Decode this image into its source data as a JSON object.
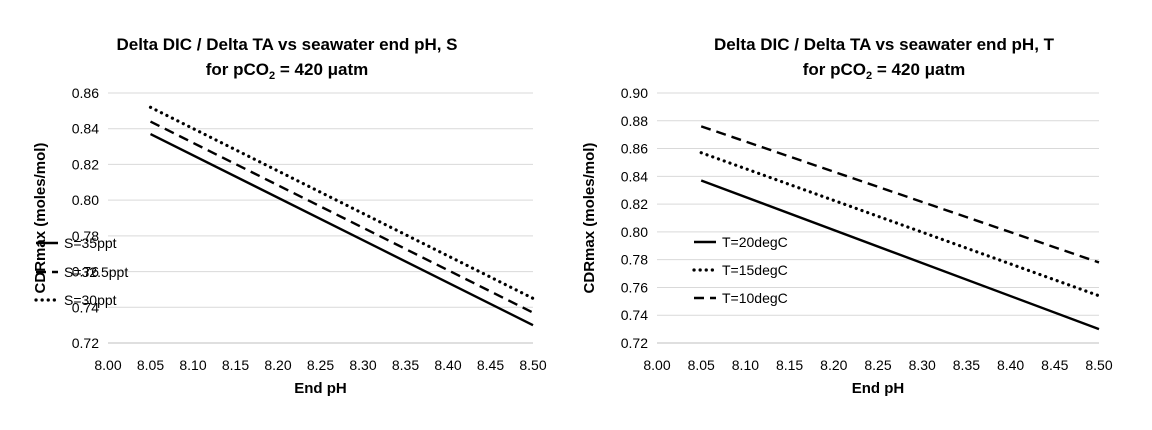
{
  "chart_data": [
    {
      "type": "line",
      "title": "Delta DIC / Delta TA vs seawater end pH, S",
      "subtitle": {
        "prefix": "for pCO",
        "sub": "2",
        "suffix": " = 420 μatm"
      },
      "xlabel": "End pH",
      "ylabel": "CDRmax (moles/mol)",
      "xlim": [
        8.0,
        8.5
      ],
      "ylim": [
        0.72,
        0.86
      ],
      "xticks": [
        "8.00",
        "8.05",
        "8.10",
        "8.15",
        "8.20",
        "8.25",
        "8.30",
        "8.35",
        "8.40",
        "8.45",
        "8.50"
      ],
      "yticks": [
        "0.72",
        "0.74",
        "0.76",
        "0.78",
        "0.80",
        "0.82",
        "0.84",
        "0.86"
      ],
      "grid": true,
      "legend_position": "left",
      "series": [
        {
          "name": "S=35ppt",
          "style": "solid",
          "x": [
            8.05,
            8.5
          ],
          "y": [
            0.837,
            0.73
          ]
        },
        {
          "name": "S=32.5ppt",
          "style": "dashed",
          "x": [
            8.05,
            8.5
          ],
          "y": [
            0.844,
            0.737
          ]
        },
        {
          "name": "S=30ppt",
          "style": "dotted",
          "x": [
            8.05,
            8.5
          ],
          "y": [
            0.852,
            0.745
          ]
        }
      ]
    },
    {
      "type": "line",
      "title": "Delta DIC / Delta TA vs seawater end pH, T",
      "subtitle": {
        "prefix": "for pCO",
        "sub": "2",
        "suffix": " = 420 μatm"
      },
      "xlabel": "End pH",
      "ylabel": "CDRmax (moles/mol)",
      "xlim": [
        8.0,
        8.5
      ],
      "ylim": [
        0.72,
        0.9
      ],
      "xticks": [
        "8.00",
        "8.05",
        "8.10",
        "8.15",
        "8.20",
        "8.25",
        "8.30",
        "8.35",
        "8.40",
        "8.45",
        "8.50"
      ],
      "yticks": [
        "0.72",
        "0.74",
        "0.76",
        "0.78",
        "0.80",
        "0.82",
        "0.84",
        "0.86",
        "0.88",
        "0.90"
      ],
      "grid": true,
      "legend_position": "left",
      "series": [
        {
          "name": "T=20degC",
          "style": "solid",
          "x": [
            8.05,
            8.5
          ],
          "y": [
            0.837,
            0.73
          ]
        },
        {
          "name": "T=15degC",
          "style": "dotted",
          "x": [
            8.05,
            8.5
          ],
          "y": [
            0.857,
            0.754
          ]
        },
        {
          "name": "T=10degC",
          "style": "dashed",
          "x": [
            8.05,
            8.5
          ],
          "y": [
            0.876,
            0.778
          ]
        }
      ]
    }
  ]
}
